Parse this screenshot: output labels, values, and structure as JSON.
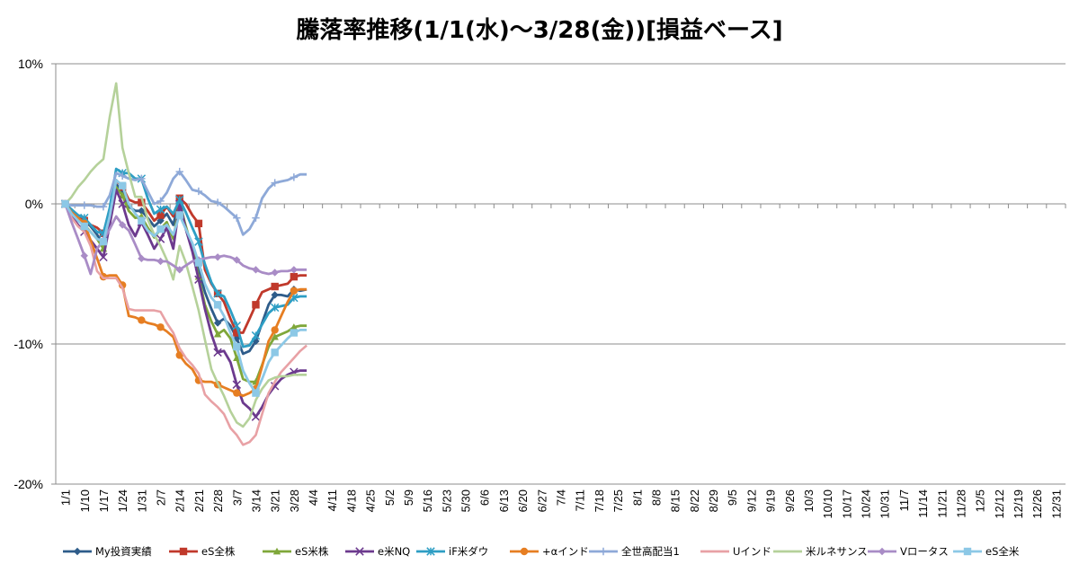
{
  "chart_data": {
    "type": "line",
    "title": "騰落率推移(1/1(水)～3/28(金))[損益ベース]",
    "ylim": [
      -20,
      10
    ],
    "yticks": [
      10,
      0,
      -10,
      -20
    ],
    "ytick_labels": [
      "10%",
      "0%",
      "-10%",
      "-20%"
    ],
    "grid": "horizontal",
    "legend_position": "bottom",
    "categories": [
      "1/1",
      "1/10",
      "1/17",
      "1/24",
      "1/31",
      "2/7",
      "2/14",
      "2/21",
      "2/28",
      "3/7",
      "3/14",
      "3/21",
      "3/28",
      "4/4",
      "4/11",
      "4/18",
      "4/25",
      "5/2",
      "5/9",
      "5/16",
      "5/23",
      "5/30",
      "6/6",
      "6/13",
      "6/20",
      "6/27",
      "7/4",
      "7/11",
      "7/18",
      "7/25",
      "8/1",
      "8/8",
      "8/15",
      "8/22",
      "8/29",
      "9/5",
      "9/12",
      "9/19",
      "9/26",
      "10/3",
      "10/10",
      "10/17",
      "10/24",
      "10/31",
      "11/7",
      "11/14",
      "11/21",
      "11/28",
      "12/5",
      "12/12",
      "12/19",
      "12/26",
      "12/31"
    ],
    "series": [
      {
        "name": "My投資実績",
        "color": "#2E5C8A",
        "marker": "diamond",
        "x": [
          0,
          0.33,
          0.67,
          1,
          1.33,
          1.67,
          2,
          2.33,
          2.67,
          3,
          3.33,
          3.67,
          4,
          4.33,
          4.67,
          5,
          5.33,
          5.67,
          6,
          6.33,
          6.67,
          7,
          7.33,
          7.67,
          8,
          8.33,
          8.67,
          9,
          9.33,
          9.67,
          10,
          10.33,
          10.67,
          11,
          11.33,
          11.67,
          12,
          12.33,
          12.67
        ],
        "values": [
          0,
          -0.6,
          -1,
          -1.2,
          -1.6,
          -2.2,
          -2.9,
          -1,
          1.4,
          0.9,
          -0.2,
          -0.5,
          -0.5,
          -1,
          -1.6,
          -1.2,
          -0.7,
          -1.5,
          0.3,
          -1.8,
          -3.3,
          -4.7,
          -6.3,
          -7.5,
          -8.5,
          -8.2,
          -8.7,
          -9.6,
          -10.7,
          -10.5,
          -9.8,
          -8.5,
          -7.2,
          -6.5,
          -6.5,
          -6.6,
          -6.1,
          -6.2,
          -6.1
        ]
      },
      {
        "name": "eS全株",
        "color": "#C0392B",
        "marker": "square",
        "x": [
          0,
          0.33,
          0.67,
          1,
          1.33,
          1.67,
          2,
          2.33,
          2.67,
          3,
          3.33,
          3.67,
          4,
          4.33,
          4.67,
          5,
          5.33,
          5.67,
          6,
          6.33,
          6.67,
          7,
          7.33,
          7.67,
          8,
          8.33,
          8.67,
          9,
          9.33,
          9.67,
          10,
          10.33,
          10.67,
          11,
          11.33,
          11.67,
          12,
          12.33,
          12.67
        ],
        "values": [
          0,
          -0.8,
          -1,
          -1.2,
          -1.5,
          -1.7,
          -2.1,
          -0.4,
          1.7,
          1.2,
          0.3,
          0.1,
          0.1,
          -0.5,
          -1.2,
          -0.8,
          -0.2,
          -0.9,
          0.4,
          0,
          -0.8,
          -1.4,
          -4.7,
          -5.7,
          -6.4,
          -7,
          -8.2,
          -9.2,
          -9.2,
          -8.2,
          -7.2,
          -6.3,
          -6.1,
          -5.9,
          -5.8,
          -5.7,
          -5.2,
          -5.1,
          -5.1
        ]
      },
      {
        "name": "eS米株",
        "color": "#7FA73A",
        "marker": "triangle",
        "x": [
          0,
          0.33,
          0.67,
          1,
          1.33,
          1.67,
          2,
          2.33,
          2.67,
          3,
          3.33,
          3.67,
          4,
          4.33,
          4.67,
          5,
          5.33,
          5.67,
          6,
          6.33,
          6.67,
          7,
          7.33,
          7.67,
          8,
          8.33,
          8.67,
          9,
          9.33,
          9.67,
          10,
          10.33,
          10.67,
          11,
          11.33,
          11.67,
          12,
          12.33,
          12.67
        ],
        "values": [
          0,
          -0.8,
          -1.2,
          -1.5,
          -2,
          -2.5,
          -3.2,
          -1.2,
          1.2,
          0.6,
          -0.5,
          -1,
          -0.9,
          -1.7,
          -2.4,
          -1.8,
          -1.3,
          -2.5,
          0,
          -1.6,
          -3.2,
          -5.2,
          -7.2,
          -8.4,
          -9.3,
          -9,
          -9.6,
          -11,
          -12.5,
          -12.7,
          -12.7,
          -11.5,
          -10.2,
          -9.5,
          -9.3,
          -9.1,
          -8.8,
          -8.7,
          -8.7
        ]
      },
      {
        "name": "e米NQ",
        "color": "#6C3A8E",
        "marker": "x",
        "x": [
          0,
          0.33,
          0.67,
          1,
          1.33,
          1.67,
          2,
          2.33,
          2.67,
          3,
          3.33,
          3.67,
          4,
          4.33,
          4.67,
          5,
          5.33,
          5.67,
          6,
          6.33,
          6.67,
          7,
          7.33,
          7.67,
          8,
          8.33,
          8.67,
          9,
          9.33,
          9.67,
          10,
          10.33,
          10.67,
          11,
          11.33,
          11.67,
          12,
          12.33,
          12.67
        ],
        "values": [
          0,
          -0.9,
          -1.5,
          -2,
          -2.6,
          -3.2,
          -3.8,
          -1.5,
          1,
          0,
          -1.5,
          -2.3,
          -1.3,
          -2.2,
          -3.2,
          -2.5,
          -1.7,
          -3.2,
          0,
          -1.8,
          -3.4,
          -5.4,
          -7.5,
          -9.3,
          -10.6,
          -10.5,
          -11.3,
          -12.9,
          -14.2,
          -14.6,
          -15.2,
          -14.5,
          -13.6,
          -13,
          -12.5,
          -12.2,
          -12,
          -11.9,
          -11.9
        ]
      },
      {
        "name": "iF米ダウ",
        "color": "#2E9EC4",
        "marker": "star",
        "x": [
          0,
          0.33,
          0.67,
          1,
          1.33,
          1.67,
          2,
          2.33,
          2.67,
          3,
          3.33,
          3.67,
          4,
          4.33,
          4.67,
          5,
          5.33,
          5.67,
          6,
          6.33,
          6.67,
          7,
          7.33,
          7.67,
          8,
          8.33,
          8.67,
          9,
          9.33,
          9.67,
          10,
          10.33,
          10.67,
          11,
          11.33,
          11.67,
          12,
          12.33,
          12.67
        ],
        "values": [
          0,
          -0.4,
          -0.8,
          -1,
          -1.5,
          -2,
          -2.1,
          -0.3,
          2.5,
          2.2,
          2.2,
          1.8,
          1.8,
          0.4,
          -0.7,
          -0.4,
          -0.2,
          -0.7,
          0.3,
          -0.6,
          -1.7,
          -2.7,
          -4.3,
          -5.6,
          -6.4,
          -6.6,
          -7.6,
          -8.7,
          -10.2,
          -10.1,
          -9.4,
          -8.6,
          -7.8,
          -7.4,
          -7.3,
          -7.2,
          -6.7,
          -6.6,
          -6.6
        ]
      },
      {
        "name": "+αインド",
        "color": "#E67E22",
        "marker": "circle",
        "x": [
          0,
          0.33,
          0.67,
          1,
          1.33,
          1.67,
          2,
          2.33,
          2.67,
          3,
          3.33,
          3.67,
          4,
          4.33,
          4.67,
          5,
          5.33,
          5.67,
          6,
          6.33,
          6.67,
          7,
          7.33,
          7.67,
          8,
          8.33,
          8.67,
          9,
          9.33,
          9.67,
          10,
          10.33,
          10.67,
          11,
          11.33,
          11.67,
          12,
          12.33,
          12.67
        ],
        "values": [
          0,
          -0.6,
          -1,
          -1.4,
          -2.6,
          -3.9,
          -5.2,
          -5.1,
          -5.1,
          -5.8,
          -8,
          -8.1,
          -8.3,
          -8.5,
          -8.6,
          -8.8,
          -9.1,
          -9.5,
          -10.8,
          -11.4,
          -11.8,
          -12.6,
          -12.7,
          -12.7,
          -12.9,
          -13.1,
          -13.3,
          -13.5,
          -13.7,
          -13.5,
          -13.2,
          -11.6,
          -9.8,
          -9,
          -8,
          -7,
          -6.2,
          -6.1,
          -6.1
        ]
      },
      {
        "name": "全世高配当1",
        "color": "#8EA9D8",
        "marker": "plus",
        "x": [
          0,
          0.33,
          0.67,
          1,
          1.33,
          1.67,
          2,
          2.33,
          2.67,
          3,
          3.33,
          3.67,
          4,
          4.33,
          4.67,
          5,
          5.33,
          5.67,
          6,
          6.33,
          6.67,
          7,
          7.33,
          7.67,
          8,
          8.33,
          8.67,
          9,
          9.33,
          9.67,
          10,
          10.33,
          10.67,
          11,
          11.33,
          11.67,
          12,
          12.33,
          12.67
        ],
        "values": [
          0,
          -0.1,
          -0.1,
          -0.1,
          -0.1,
          -0.2,
          -0.2,
          0.6,
          2.2,
          2,
          1.8,
          1.7,
          1.8,
          0.9,
          0,
          0.2,
          0.8,
          1.8,
          2.3,
          1.7,
          1,
          0.9,
          0.6,
          0.2,
          0.1,
          -0.2,
          -0.6,
          -1,
          -2.2,
          -1.8,
          -1,
          0.4,
          1.1,
          1.5,
          1.6,
          1.7,
          1.9,
          2.1,
          2.1
        ]
      },
      {
        "name": "Uインド",
        "color": "#E8A1A5",
        "marker": "none",
        "x": [
          0,
          0.33,
          0.67,
          1,
          1.33,
          1.67,
          2,
          2.33,
          2.67,
          3,
          3.33,
          3.67,
          4,
          4.33,
          4.67,
          5,
          5.33,
          5.67,
          6,
          6.33,
          6.67,
          7,
          7.33,
          7.67,
          8,
          8.33,
          8.67,
          9,
          9.33,
          9.67,
          10,
          10.33,
          10.67,
          11,
          11.33,
          11.67,
          12,
          12.33,
          12.67
        ],
        "values": [
          0,
          -1,
          -1.6,
          -2,
          -3,
          -4.8,
          -5.3,
          -5.3,
          -5.3,
          -6,
          -7.5,
          -7.6,
          -7.6,
          -7.6,
          -7.6,
          -7.7,
          -8.5,
          -9.2,
          -10.3,
          -11,
          -11.5,
          -12.1,
          -13.6,
          -14.1,
          -14.5,
          -15,
          -16,
          -16.5,
          -17.2,
          -17,
          -16.5,
          -15,
          -13.5,
          -12.7,
          -12,
          -11.5,
          -11,
          -10.5,
          -10.1
        ]
      },
      {
        "name": "米ルネサンス",
        "color": "#B5D19A",
        "marker": "none",
        "x": [
          0,
          0.33,
          0.67,
          1,
          1.33,
          1.67,
          2,
          2.33,
          2.67,
          3,
          3.33,
          3.67,
          4,
          4.33,
          4.67,
          5,
          5.33,
          5.67,
          6,
          6.33,
          6.67,
          7,
          7.33,
          7.67,
          8,
          8.33,
          8.67,
          9,
          9.33,
          9.67,
          10,
          10.33,
          10.67,
          11,
          11.33,
          11.67,
          12,
          12.33,
          12.67
        ],
        "values": [
          0,
          0.5,
          1.2,
          1.7,
          2.3,
          2.8,
          3.2,
          6.2,
          8.6,
          4,
          2.2,
          0.5,
          0.5,
          -1.1,
          -2.2,
          -3,
          -4,
          -5.4,
          -3,
          -4.2,
          -5.9,
          -7.6,
          -9.7,
          -11.8,
          -12.8,
          -13.7,
          -14.8,
          -15.6,
          -15.9,
          -15.3,
          -14,
          -13.2,
          -12.6,
          -12.4,
          -12.3,
          -12.3,
          -12.2,
          -12.2,
          -12.2
        ]
      },
      {
        "name": "Vロータス",
        "color": "#A98CC6",
        "marker": "diamond",
        "x": [
          0,
          0.33,
          0.67,
          1,
          1.33,
          1.67,
          2,
          2.33,
          2.67,
          3,
          3.33,
          3.67,
          4,
          4.33,
          4.67,
          5,
          5.33,
          5.67,
          6,
          6.33,
          6.67,
          7,
          7.33,
          7.67,
          8,
          8.33,
          8.67,
          9,
          9.33,
          9.67,
          10,
          10.33,
          10.67,
          11,
          11.33,
          11.67,
          12,
          12.33,
          12.67
        ],
        "values": [
          0,
          -1.3,
          -2.5,
          -3.7,
          -5,
          -3.2,
          -2.6,
          -1.8,
          -0.9,
          -1.5,
          -1.9,
          -2.9,
          -3.9,
          -4,
          -4,
          -4.1,
          -4.1,
          -4.4,
          -4.7,
          -4.4,
          -4.1,
          -4,
          -3.9,
          -3.8,
          -3.8,
          -3.7,
          -3.8,
          -4,
          -4.4,
          -4.6,
          -4.7,
          -4.9,
          -5,
          -4.9,
          -4.8,
          -4.8,
          -4.7,
          -4.7,
          -4.7
        ]
      },
      {
        "name": "eS全米",
        "color": "#8CC8E6",
        "marker": "square",
        "x": [
          0,
          0.33,
          0.67,
          1,
          1.33,
          1.67,
          2,
          2.33,
          2.67,
          3,
          3.33,
          3.67,
          4,
          4.33,
          4.67,
          5,
          5.33,
          5.67,
          6,
          6.33,
          6.67,
          7,
          7.33,
          7.67,
          8,
          8.33,
          8.67,
          9,
          9.33,
          9.67,
          10,
          10.33,
          10.67,
          11,
          11.33,
          11.67,
          12,
          12.33,
          12.67
        ],
        "values": [
          0,
          -0.7,
          -1.2,
          -1.6,
          -2,
          -2.5,
          -2.7,
          -0.9,
          1.7,
          1.3,
          0,
          -0.7,
          -1.2,
          -1.9,
          -2.3,
          -1.8,
          -1.5,
          -2.2,
          -0.8,
          -1.8,
          -2.8,
          -4.2,
          -5.7,
          -6.7,
          -7.2,
          -8,
          -9.2,
          -10.2,
          -11.9,
          -12.8,
          -13.5,
          -12.5,
          -11.3,
          -10.6,
          -10.1,
          -9.6,
          -9.2,
          -9,
          -9
        ]
      }
    ]
  }
}
